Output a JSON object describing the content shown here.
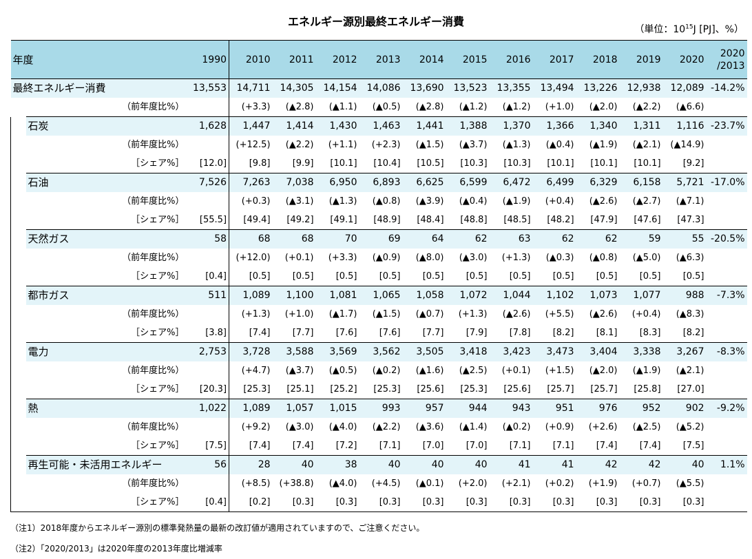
{
  "title": "エネルギー源別最終エネルギー消費",
  "unit_prefix": "（単位：10",
  "unit_sup": "15",
  "unit_suffix": "J [PJ]、%）",
  "header": {
    "label": "年度",
    "years": [
      "1990",
      "2010",
      "2011",
      "2012",
      "2013",
      "2014",
      "2015",
      "2016",
      "2017",
      "2018",
      "2019",
      "2020"
    ],
    "ratio_line1": "2020",
    "ratio_line2": "/2013"
  },
  "sub_labels": {
    "yoy": "（前年度比%）",
    "share": "［シェア%］"
  },
  "total": {
    "name": "最終エネルギー消費",
    "values": [
      "13,553",
      "14,711",
      "14,305",
      "14,154",
      "14,086",
      "13,690",
      "13,523",
      "13,355",
      "13,494",
      "13,226",
      "12,938",
      "12,089"
    ],
    "ratio": "-14.2%",
    "yoy": [
      "",
      "(+3.3)",
      "(▲2.8)",
      "(▲1.1)",
      "(▲0.5)",
      "(▲2.8)",
      "(▲1.2)",
      "(▲1.2)",
      "(+1.0)",
      "(▲2.0)",
      "(▲2.2)",
      "(▲6.6)"
    ]
  },
  "sources": [
    {
      "name": "石炭",
      "values": [
        "1,628",
        "1,447",
        "1,414",
        "1,430",
        "1,463",
        "1,441",
        "1,388",
        "1,370",
        "1,366",
        "1,340",
        "1,311",
        "1,116"
      ],
      "ratio": "-23.7%",
      "yoy": [
        "",
        "(+12.5)",
        "(▲2.2)",
        "(+1.1)",
        "(+2.3)",
        "(▲1.5)",
        "(▲3.7)",
        "(▲1.3)",
        "(▲0.4)",
        "(▲1.9)",
        "(▲2.1)",
        "(▲14.9)"
      ],
      "share": [
        "[12.0]",
        "[9.8]",
        "[9.9]",
        "[10.1]",
        "[10.4]",
        "[10.5]",
        "[10.3]",
        "[10.3]",
        "[10.1]",
        "[10.1]",
        "[10.1]",
        "[9.2]"
      ]
    },
    {
      "name": "石油",
      "values": [
        "7,526",
        "7,263",
        "7,038",
        "6,950",
        "6,893",
        "6,625",
        "6,599",
        "6,472",
        "6,499",
        "6,329",
        "6,158",
        "5,721"
      ],
      "ratio": "-17.0%",
      "yoy": [
        "",
        "(+0.3)",
        "(▲3.1)",
        "(▲1.3)",
        "(▲0.8)",
        "(▲3.9)",
        "(▲0.4)",
        "(▲1.9)",
        "(+0.4)",
        "(▲2.6)",
        "(▲2.7)",
        "(▲7.1)"
      ],
      "share": [
        "[55.5]",
        "[49.4]",
        "[49.2]",
        "[49.1]",
        "[48.9]",
        "[48.4]",
        "[48.8]",
        "[48.5]",
        "[48.2]",
        "[47.9]",
        "[47.6]",
        "[47.3]"
      ]
    },
    {
      "name": "天然ガス",
      "values": [
        "58",
        "68",
        "68",
        "70",
        "69",
        "64",
        "62",
        "63",
        "62",
        "62",
        "59",
        "55"
      ],
      "ratio": "-20.5%",
      "yoy": [
        "",
        "(+12.0)",
        "(+0.1)",
        "(+3.3)",
        "(▲0.9)",
        "(▲8.0)",
        "(▲3.0)",
        "(+1.3)",
        "(▲0.3)",
        "(▲0.8)",
        "(▲5.0)",
        "(▲6.3)"
      ],
      "share": [
        "[0.4]",
        "[0.5]",
        "[0.5]",
        "[0.5]",
        "[0.5]",
        "[0.5]",
        "[0.5]",
        "[0.5]",
        "[0.5]",
        "[0.5]",
        "[0.5]",
        "[0.5]"
      ]
    },
    {
      "name": "都市ガス",
      "values": [
        "511",
        "1,089",
        "1,100",
        "1,081",
        "1,065",
        "1,058",
        "1,072",
        "1,044",
        "1,102",
        "1,073",
        "1,077",
        "988"
      ],
      "ratio": "-7.3%",
      "yoy": [
        "",
        "(+1.3)",
        "(+1.0)",
        "(▲1.7)",
        "(▲1.5)",
        "(▲0.7)",
        "(+1.3)",
        "(▲2.6)",
        "(+5.5)",
        "(▲2.6)",
        "(+0.4)",
        "(▲8.3)"
      ],
      "share": [
        "[3.8]",
        "[7.4]",
        "[7.7]",
        "[7.6]",
        "[7.6]",
        "[7.7]",
        "[7.9]",
        "[7.8]",
        "[8.2]",
        "[8.1]",
        "[8.3]",
        "[8.2]"
      ]
    },
    {
      "name": "電力",
      "values": [
        "2,753",
        "3,728",
        "3,588",
        "3,569",
        "3,562",
        "3,505",
        "3,418",
        "3,423",
        "3,473",
        "3,404",
        "3,338",
        "3,267"
      ],
      "ratio": "-8.3%",
      "yoy": [
        "",
        "(+4.7)",
        "(▲3.7)",
        "(▲0.5)",
        "(▲0.2)",
        "(▲1.6)",
        "(▲2.5)",
        "(+0.1)",
        "(+1.5)",
        "(▲2.0)",
        "(▲1.9)",
        "(▲2.1)"
      ],
      "share": [
        "[20.3]",
        "[25.3]",
        "[25.1]",
        "[25.2]",
        "[25.3]",
        "[25.6]",
        "[25.3]",
        "[25.6]",
        "[25.7]",
        "[25.7]",
        "[25.8]",
        "[27.0]"
      ]
    },
    {
      "name": "熱",
      "values": [
        "1,022",
        "1,089",
        "1,057",
        "1,015",
        "993",
        "957",
        "944",
        "943",
        "951",
        "976",
        "952",
        "902"
      ],
      "ratio": "-9.2%",
      "yoy": [
        "",
        "(+9.2)",
        "(▲3.0)",
        "(▲4.0)",
        "(▲2.2)",
        "(▲3.6)",
        "(▲1.4)",
        "(▲0.2)",
        "(+0.9)",
        "(+2.6)",
        "(▲2.5)",
        "(▲5.2)"
      ],
      "share": [
        "[7.5]",
        "[7.4]",
        "[7.4]",
        "[7.2]",
        "[7.1]",
        "[7.0]",
        "[7.0]",
        "[7.1]",
        "[7.1]",
        "[7.4]",
        "[7.4]",
        "[7.5]"
      ]
    },
    {
      "name": "再生可能・未活用エネルギー",
      "values": [
        "56",
        "28",
        "40",
        "38",
        "40",
        "40",
        "40",
        "41",
        "41",
        "42",
        "42",
        "40"
      ],
      "ratio": "1.1%",
      "yoy": [
        "",
        "(+8.5)",
        "(+38.8)",
        "(▲4.0)",
        "(+4.5)",
        "(▲0.1)",
        "(+2.0)",
        "(+2.1)",
        "(+0.2)",
        "(+1.9)",
        "(+0.7)",
        "(▲5.5)"
      ],
      "share": [
        "[0.4]",
        "[0.2]",
        "[0.3]",
        "[0.3]",
        "[0.3]",
        "[0.3]",
        "[0.3]",
        "[0.3]",
        "[0.3]",
        "[0.3]",
        "[0.3]",
        "[0.3]"
      ]
    }
  ],
  "notes": [
    "（注1）2018年度からエネルギー源別の標準発熱量の最新の改訂値が適用されていますので、ご注意ください。",
    "（注2）「2020/2013」は2020年度の2013年度比増減率"
  ]
}
